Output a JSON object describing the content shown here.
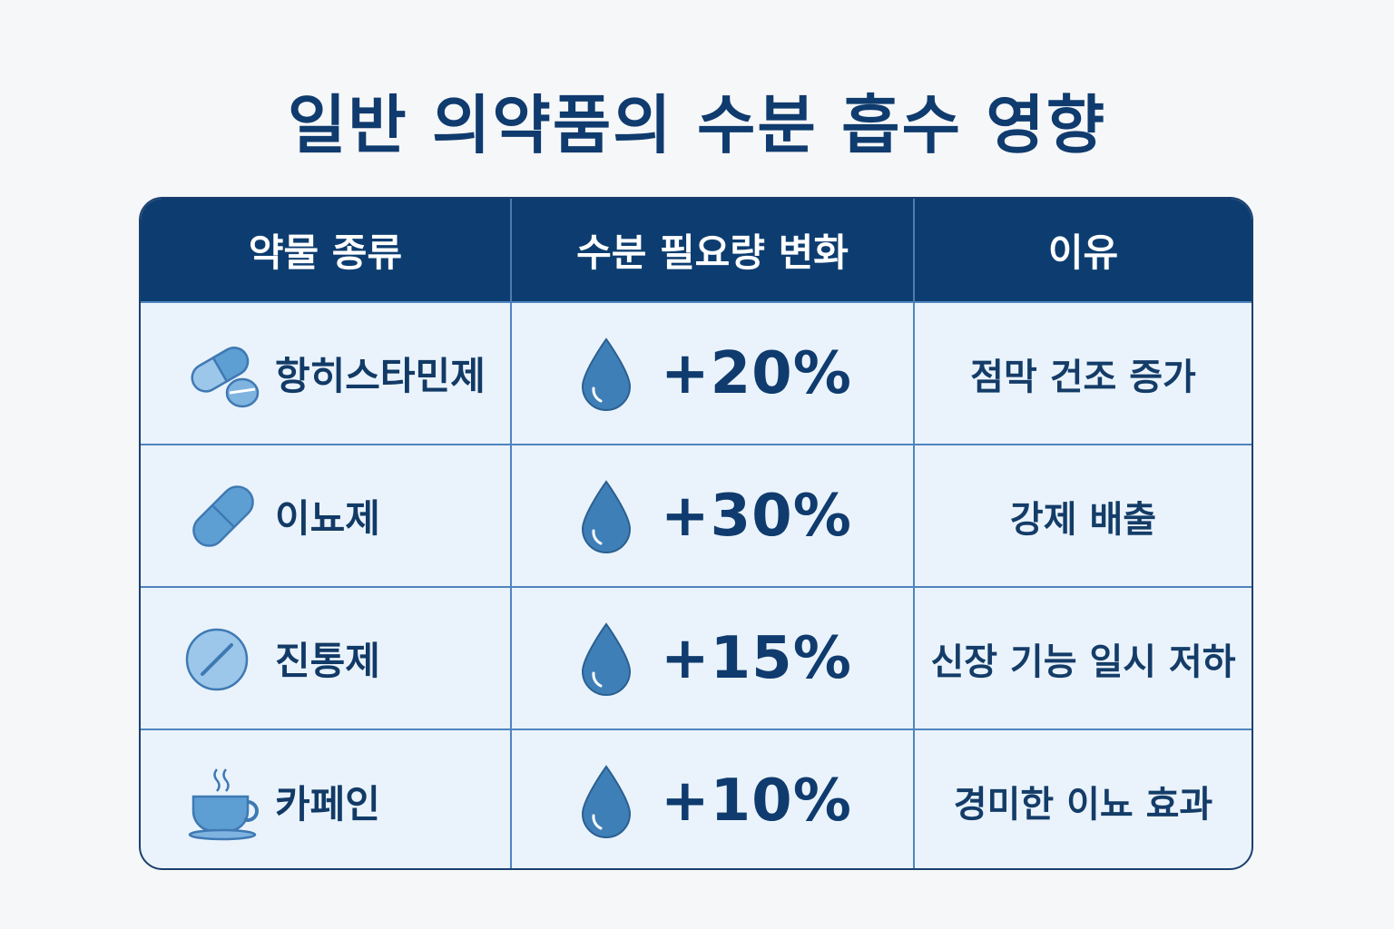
{
  "title": "일반 의약품의 수분 흡수 영향",
  "headers": [
    "약물 종류",
    "수분 필요량 변화",
    "이유"
  ],
  "rows": [
    {
      "name": "항히스타민제",
      "icon": "pills-icon",
      "change": "+20%",
      "reason": "점막 건조 증가"
    },
    {
      "name": "이뇨제",
      "icon": "capsule-icon",
      "change": "+30%",
      "reason": "강제 배출"
    },
    {
      "name": "진통제",
      "icon": "tablet-icon",
      "change": "+15%",
      "reason": "신장 기능 일시 저하"
    },
    {
      "name": "카페인",
      "icon": "coffee-cup-icon",
      "change": "+10%",
      "reason": "경미한 이뇨 효과"
    }
  ],
  "colors": {
    "header_bg": "#0d3d70",
    "body_bg": "#eaf3fb",
    "icon_blue": "#5e9fd3",
    "drop_blue": "#3f7fb8"
  }
}
